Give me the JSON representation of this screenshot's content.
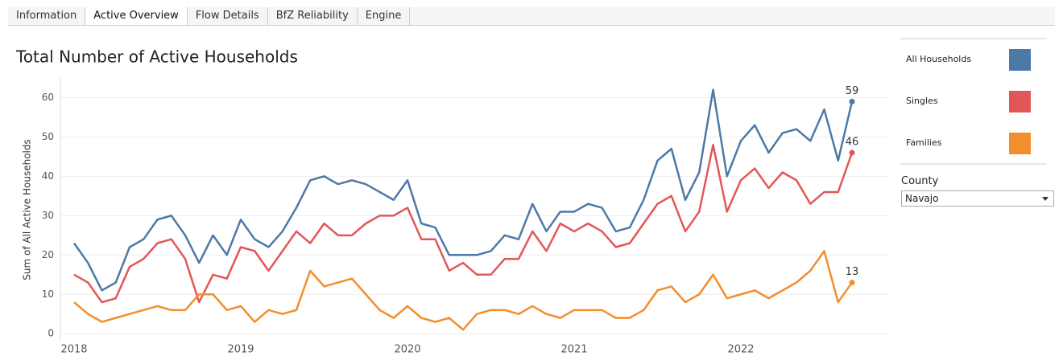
{
  "tabs": [
    "Information",
    "Active Overview",
    "Flow Details",
    "BfZ Reliability",
    "Engine"
  ],
  "active_tab": 1,
  "chart_data": {
    "type": "line",
    "title": "Total Number of Active Households",
    "y_label": "Sum of All Active Households",
    "categories": [
      "2018",
      null,
      null,
      null,
      null,
      null,
      null,
      null,
      null,
      null,
      null,
      null,
      "2019",
      null,
      null,
      null,
      null,
      null,
      null,
      null,
      null,
      null,
      null,
      null,
      "2020",
      null,
      null,
      null,
      null,
      null,
      null,
      null,
      null,
      null,
      null,
      null,
      "2021",
      null,
      null,
      null,
      null,
      null,
      null,
      null,
      null,
      null,
      null,
      null,
      "2022",
      null,
      null,
      null,
      null,
      null,
      null,
      null,
      null
    ],
    "series": [
      {
        "name": "All Households",
        "color": "#4e79a7",
        "values": [
          23,
          18,
          11,
          13,
          22,
          24,
          29,
          30,
          25,
          18,
          25,
          20,
          29,
          24,
          22,
          26,
          32,
          39,
          40,
          38,
          39,
          38,
          36,
          34,
          39,
          28,
          27,
          20,
          20,
          20,
          21,
          25,
          24,
          33,
          26,
          31,
          31,
          33,
          32,
          26,
          27,
          34,
          44,
          47,
          34,
          41,
          62,
          40,
          49,
          53,
          46,
          51,
          52,
          49,
          57,
          44,
          59
        ]
      },
      {
        "name": "Singles",
        "color": "#e15759",
        "values": [
          15,
          13,
          8,
          9,
          17,
          19,
          23,
          24,
          19,
          8,
          15,
          14,
          22,
          21,
          16,
          21,
          26,
          23,
          28,
          25,
          25,
          28,
          30,
          30,
          32,
          24,
          24,
          16,
          18,
          15,
          15,
          19,
          19,
          26,
          21,
          28,
          26,
          28,
          26,
          22,
          23,
          28,
          33,
          35,
          26,
          31,
          48,
          31,
          39,
          42,
          37,
          41,
          39,
          33,
          36,
          36,
          46
        ]
      },
      {
        "name": "Families",
        "color": "#f28e2b",
        "values": [
          8,
          5,
          3,
          4,
          5,
          6,
          7,
          6,
          6,
          10,
          10,
          6,
          7,
          3,
          6,
          5,
          6,
          16,
          12,
          13,
          14,
          10,
          6,
          4,
          7,
          4,
          3,
          4,
          1,
          5,
          6,
          6,
          5,
          7,
          5,
          4,
          6,
          6,
          6,
          4,
          4,
          6,
          11,
          12,
          8,
          10,
          15,
          9,
          10,
          11,
          9,
          11,
          13,
          16,
          21,
          8,
          13
        ]
      }
    ],
    "ylim": [
      -2,
      65
    ],
    "yticks": [
      0,
      10,
      20,
      30,
      40,
      50,
      60
    ],
    "grid": true,
    "label_last_point": true
  },
  "filter": {
    "label": "County",
    "value": "Navajo"
  }
}
